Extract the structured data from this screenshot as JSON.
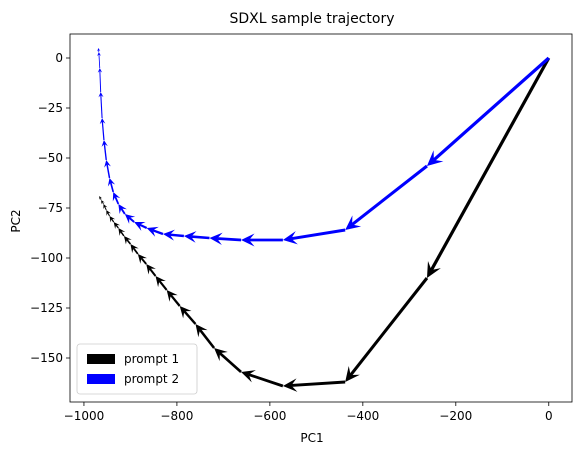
{
  "chart_data": {
    "type": "line",
    "title": "SDXL sample trajectory",
    "xlabel": "PC1",
    "ylabel": "PC2",
    "xlim": [
      -1030,
      50
    ],
    "ylim": [
      -172,
      12
    ],
    "xticks": [
      -1000,
      -800,
      -600,
      -400,
      -200,
      0
    ],
    "xtick_labels": [
      "−1000",
      "−800",
      "−600",
      "−400",
      "−200",
      "0"
    ],
    "yticks": [
      0,
      -25,
      -50,
      -75,
      -100,
      -125,
      -150
    ],
    "ytick_labels": [
      "0",
      "−25",
      "−50",
      "−75",
      "−100",
      "−125",
      "−150"
    ],
    "grid": false,
    "legend_position": "lower-left",
    "series": [
      {
        "name": "prompt 1",
        "color": "#000000",
        "x": [
          0,
          -262,
          -438,
          -572,
          -662,
          -720,
          -760,
          -794,
          -822,
          -846,
          -866,
          -884,
          -900,
          -914,
          -926,
          -936,
          -945,
          -952,
          -958,
          -963,
          -967
        ],
        "y": [
          0,
          -110,
          -162,
          -164,
          -157,
          -145,
          -133,
          -124,
          -116,
          -109,
          -103,
          -98,
          -93,
          -89,
          -85,
          -82,
          -79,
          -76,
          -73,
          -71,
          -69
        ]
      },
      {
        "name": "prompt 2",
        "color": "#0000ff",
        "x": [
          0,
          -262,
          -438,
          -572,
          -662,
          -730,
          -785,
          -830,
          -865,
          -892,
          -912,
          -926,
          -937,
          -945,
          -952,
          -957,
          -961,
          -964,
          -966,
          -968,
          -969
        ],
        "y": [
          0,
          -54,
          -86,
          -91,
          -91,
          -90,
          -89,
          -88,
          -85,
          -82,
          -78,
          -73,
          -67,
          -60,
          -51,
          -41,
          -30,
          -17,
          -5,
          3,
          5
        ]
      }
    ]
  }
}
